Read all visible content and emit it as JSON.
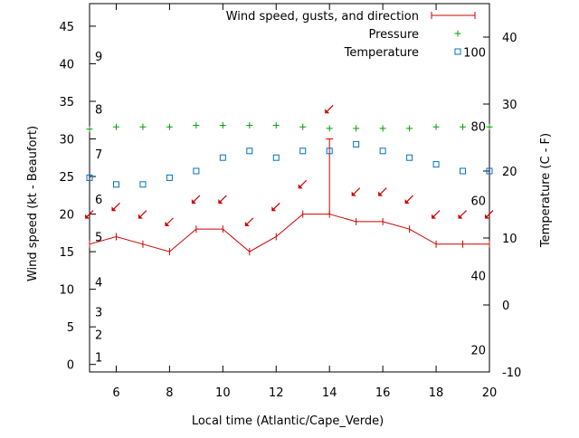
{
  "chart_data": {
    "type": "line",
    "xlabel": "Local time (Atlantic/Cape_Verde)",
    "ylabel": "Wind speed (kt - Beaufort)",
    "y2label": "Temperature (C - F)",
    "xlim": [
      5,
      20
    ],
    "ylim": [
      -1,
      48
    ],
    "y2lim": [
      -10,
      45
    ],
    "x_ticks": [
      "6",
      "8",
      "10",
      "12",
      "14",
      "16",
      "18",
      "20"
    ],
    "y_ticks": [
      "0",
      "5",
      "10",
      "15",
      "20",
      "25",
      "30",
      "35",
      "40",
      "45"
    ],
    "y2_ticks": [
      "-10",
      "0",
      "10",
      "20",
      "30",
      "40"
    ],
    "beaufort_labels": [
      {
        "text": "1",
        "y": 1
      },
      {
        "text": "2",
        "y": 4
      },
      {
        "text": "3",
        "y": 7
      },
      {
        "text": "4",
        "y": 11
      },
      {
        "text": "5",
        "y": 17
      },
      {
        "text": "6",
        "y": 22
      },
      {
        "text": "7",
        "y": 28
      },
      {
        "text": "8",
        "y": 34
      },
      {
        "text": "9",
        "y": 41
      }
    ],
    "fahrenheit_labels": [
      {
        "text": "20",
        "y2": -6.7
      },
      {
        "text": "40",
        "y2": 4.4
      },
      {
        "text": "60",
        "y2": 15.6
      },
      {
        "text": "80",
        "y2": 26.7
      },
      {
        "text": "100",
        "y2": 37.8
      }
    ],
    "legend": {
      "placement": "top-right",
      "entries": [
        "Wind speed, gusts, and direction",
        "Pressure",
        "Temperature"
      ]
    },
    "series": [
      {
        "name": "Wind speed, gusts, and direction",
        "axis": "y",
        "color": "#cc0000",
        "x": [
          5,
          6,
          7,
          8,
          9,
          10,
          11,
          12,
          13,
          14,
          15,
          16,
          17,
          18,
          19,
          20
        ],
        "values": [
          16,
          17,
          16,
          15,
          18,
          18,
          15,
          17,
          20,
          20,
          19,
          19,
          18,
          16,
          16,
          16
        ],
        "gusts": [
          {
            "x": 14,
            "value": 30
          }
        ],
        "direction_arrows_y": [
          20,
          21,
          20,
          19,
          22,
          22,
          19,
          21,
          24,
          34,
          23,
          23,
          22,
          20,
          20,
          20
        ]
      },
      {
        "name": "Pressure",
        "axis": "y",
        "color": "#00a000",
        "x": [
          5,
          6,
          7,
          8,
          9,
          10,
          11,
          12,
          13,
          14,
          15,
          16,
          17,
          18,
          19,
          20
        ],
        "values": [
          31.3,
          31.6,
          31.6,
          31.6,
          31.8,
          31.8,
          31.8,
          31.8,
          31.6,
          31.4,
          31.4,
          31.4,
          31.4,
          31.6,
          31.6,
          31.6
        ]
      },
      {
        "name": "Temperature",
        "axis": "y2",
        "color": "#0070c0",
        "x": [
          5,
          6,
          7,
          8,
          9,
          10,
          11,
          12,
          13,
          14,
          15,
          16,
          17,
          18,
          19,
          20
        ],
        "values": [
          19,
          18,
          18,
          19,
          20,
          22,
          23,
          22,
          23,
          23,
          24,
          23,
          22,
          21,
          20,
          20
        ]
      }
    ]
  }
}
